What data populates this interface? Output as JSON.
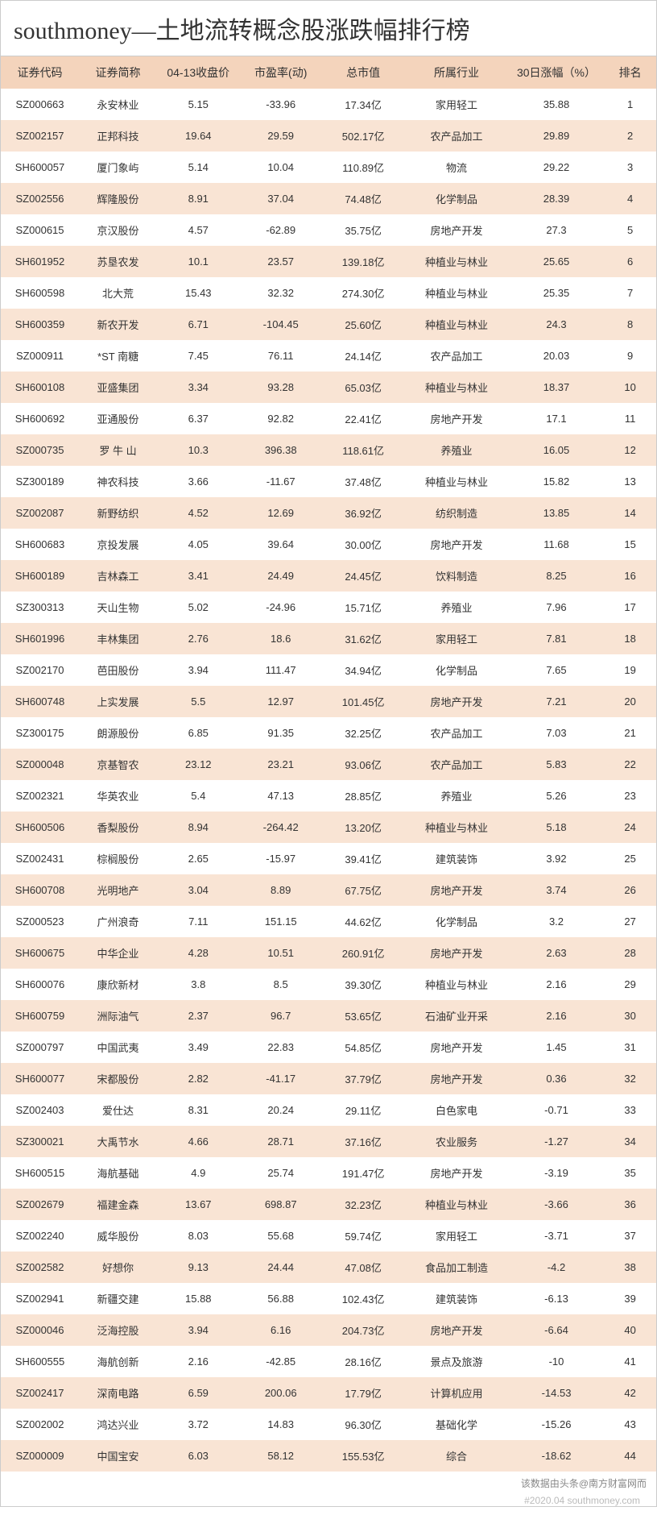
{
  "title": "southmoney—土地流转概念股涨跌幅排行榜",
  "headers": {
    "code": "证券代码",
    "name": "证券简称",
    "price": "04-13收盘价",
    "pe": "市盈率(动)",
    "mcap": "总市值",
    "industry": "所属行业",
    "chg": "30日涨幅（%）",
    "rank": "排名"
  },
  "rows": [
    {
      "code": "SZ000663",
      "name": "永安林业",
      "price": "5.15",
      "pe": "-33.96",
      "mcap": "17.34亿",
      "industry": "家用轻工",
      "chg": "35.88",
      "rank": "1"
    },
    {
      "code": "SZ002157",
      "name": "正邦科技",
      "price": "19.64",
      "pe": "29.59",
      "mcap": "502.17亿",
      "industry": "农产品加工",
      "chg": "29.89",
      "rank": "2"
    },
    {
      "code": "SH600057",
      "name": "厦门象屿",
      "price": "5.14",
      "pe": "10.04",
      "mcap": "110.89亿",
      "industry": "物流",
      "chg": "29.22",
      "rank": "3"
    },
    {
      "code": "SZ002556",
      "name": "辉隆股份",
      "price": "8.91",
      "pe": "37.04",
      "mcap": "74.48亿",
      "industry": "化学制品",
      "chg": "28.39",
      "rank": "4"
    },
    {
      "code": "SZ000615",
      "name": "京汉股份",
      "price": "4.57",
      "pe": "-62.89",
      "mcap": "35.75亿",
      "industry": "房地产开发",
      "chg": "27.3",
      "rank": "5"
    },
    {
      "code": "SH601952",
      "name": "苏垦农发",
      "price": "10.1",
      "pe": "23.57",
      "mcap": "139.18亿",
      "industry": "种植业与林业",
      "chg": "25.65",
      "rank": "6"
    },
    {
      "code": "SH600598",
      "name": "北大荒",
      "price": "15.43",
      "pe": "32.32",
      "mcap": "274.30亿",
      "industry": "种植业与林业",
      "chg": "25.35",
      "rank": "7"
    },
    {
      "code": "SH600359",
      "name": "新农开发",
      "price": "6.71",
      "pe": "-104.45",
      "mcap": "25.60亿",
      "industry": "种植业与林业",
      "chg": "24.3",
      "rank": "8"
    },
    {
      "code": "SZ000911",
      "name": "*ST 南糖",
      "price": "7.45",
      "pe": "76.11",
      "mcap": "24.14亿",
      "industry": "农产品加工",
      "chg": "20.03",
      "rank": "9"
    },
    {
      "code": "SH600108",
      "name": "亚盛集团",
      "price": "3.34",
      "pe": "93.28",
      "mcap": "65.03亿",
      "industry": "种植业与林业",
      "chg": "18.37",
      "rank": "10"
    },
    {
      "code": "SH600692",
      "name": "亚通股份",
      "price": "6.37",
      "pe": "92.82",
      "mcap": "22.41亿",
      "industry": "房地产开发",
      "chg": "17.1",
      "rank": "11"
    },
    {
      "code": "SZ000735",
      "name": "罗 牛 山",
      "price": "10.3",
      "pe": "396.38",
      "mcap": "118.61亿",
      "industry": "养殖业",
      "chg": "16.05",
      "rank": "12"
    },
    {
      "code": "SZ300189",
      "name": "神农科技",
      "price": "3.66",
      "pe": "-11.67",
      "mcap": "37.48亿",
      "industry": "种植业与林业",
      "chg": "15.82",
      "rank": "13"
    },
    {
      "code": "SZ002087",
      "name": "新野纺织",
      "price": "4.52",
      "pe": "12.69",
      "mcap": "36.92亿",
      "industry": "纺织制造",
      "chg": "13.85",
      "rank": "14"
    },
    {
      "code": "SH600683",
      "name": "京投发展",
      "price": "4.05",
      "pe": "39.64",
      "mcap": "30.00亿",
      "industry": "房地产开发",
      "chg": "11.68",
      "rank": "15"
    },
    {
      "code": "SH600189",
      "name": "吉林森工",
      "price": "3.41",
      "pe": "24.49",
      "mcap": "24.45亿",
      "industry": "饮料制造",
      "chg": "8.25",
      "rank": "16"
    },
    {
      "code": "SZ300313",
      "name": "天山生物",
      "price": "5.02",
      "pe": "-24.96",
      "mcap": "15.71亿",
      "industry": "养殖业",
      "chg": "7.96",
      "rank": "17"
    },
    {
      "code": "SH601996",
      "name": "丰林集团",
      "price": "2.76",
      "pe": "18.6",
      "mcap": "31.62亿",
      "industry": "家用轻工",
      "chg": "7.81",
      "rank": "18"
    },
    {
      "code": "SZ002170",
      "name": "芭田股份",
      "price": "3.94",
      "pe": "111.47",
      "mcap": "34.94亿",
      "industry": "化学制品",
      "chg": "7.65",
      "rank": "19"
    },
    {
      "code": "SH600748",
      "name": "上实发展",
      "price": "5.5",
      "pe": "12.97",
      "mcap": "101.45亿",
      "industry": "房地产开发",
      "chg": "7.21",
      "rank": "20"
    },
    {
      "code": "SZ300175",
      "name": "朗源股份",
      "price": "6.85",
      "pe": "91.35",
      "mcap": "32.25亿",
      "industry": "农产品加工",
      "chg": "7.03",
      "rank": "21"
    },
    {
      "code": "SZ000048",
      "name": "京基智农",
      "price": "23.12",
      "pe": "23.21",
      "mcap": "93.06亿",
      "industry": "农产品加工",
      "chg": "5.83",
      "rank": "22"
    },
    {
      "code": "SZ002321",
      "name": "华英农业",
      "price": "5.4",
      "pe": "47.13",
      "mcap": "28.85亿",
      "industry": "养殖业",
      "chg": "5.26",
      "rank": "23"
    },
    {
      "code": "SH600506",
      "name": "香梨股份",
      "price": "8.94",
      "pe": "-264.42",
      "mcap": "13.20亿",
      "industry": "种植业与林业",
      "chg": "5.18",
      "rank": "24"
    },
    {
      "code": "SZ002431",
      "name": "棕榈股份",
      "price": "2.65",
      "pe": "-15.97",
      "mcap": "39.41亿",
      "industry": "建筑装饰",
      "chg": "3.92",
      "rank": "25"
    },
    {
      "code": "SH600708",
      "name": "光明地产",
      "price": "3.04",
      "pe": "8.89",
      "mcap": "67.75亿",
      "industry": "房地产开发",
      "chg": "3.74",
      "rank": "26"
    },
    {
      "code": "SZ000523",
      "name": "广州浪奇",
      "price": "7.11",
      "pe": "151.15",
      "mcap": "44.62亿",
      "industry": "化学制品",
      "chg": "3.2",
      "rank": "27"
    },
    {
      "code": "SH600675",
      "name": "中华企业",
      "price": "4.28",
      "pe": "10.51",
      "mcap": "260.91亿",
      "industry": "房地产开发",
      "chg": "2.63",
      "rank": "28"
    },
    {
      "code": "SH600076",
      "name": "康欣新材",
      "price": "3.8",
      "pe": "8.5",
      "mcap": "39.30亿",
      "industry": "种植业与林业",
      "chg": "2.16",
      "rank": "29"
    },
    {
      "code": "SH600759",
      "name": "洲际油气",
      "price": "2.37",
      "pe": "96.7",
      "mcap": "53.65亿",
      "industry": "石油矿业开采",
      "chg": "2.16",
      "rank": "30"
    },
    {
      "code": "SZ000797",
      "name": "中国武夷",
      "price": "3.49",
      "pe": "22.83",
      "mcap": "54.85亿",
      "industry": "房地产开发",
      "chg": "1.45",
      "rank": "31"
    },
    {
      "code": "SH600077",
      "name": "宋都股份",
      "price": "2.82",
      "pe": "-41.17",
      "mcap": "37.79亿",
      "industry": "房地产开发",
      "chg": "0.36",
      "rank": "32"
    },
    {
      "code": "SZ002403",
      "name": "爱仕达",
      "price": "8.31",
      "pe": "20.24",
      "mcap": "29.11亿",
      "industry": "白色家电",
      "chg": "-0.71",
      "rank": "33"
    },
    {
      "code": "SZ300021",
      "name": "大禹节水",
      "price": "4.66",
      "pe": "28.71",
      "mcap": "37.16亿",
      "industry": "农业服务",
      "chg": "-1.27",
      "rank": "34"
    },
    {
      "code": "SH600515",
      "name": "海航基础",
      "price": "4.9",
      "pe": "25.74",
      "mcap": "191.47亿",
      "industry": "房地产开发",
      "chg": "-3.19",
      "rank": "35"
    },
    {
      "code": "SZ002679",
      "name": "福建金森",
      "price": "13.67",
      "pe": "698.87",
      "mcap": "32.23亿",
      "industry": "种植业与林业",
      "chg": "-3.66",
      "rank": "36"
    },
    {
      "code": "SZ002240",
      "name": "威华股份",
      "price": "8.03",
      "pe": "55.68",
      "mcap": "59.74亿",
      "industry": "家用轻工",
      "chg": "-3.71",
      "rank": "37"
    },
    {
      "code": "SZ002582",
      "name": "好想你",
      "price": "9.13",
      "pe": "24.44",
      "mcap": "47.08亿",
      "industry": "食品加工制造",
      "chg": "-4.2",
      "rank": "38"
    },
    {
      "code": "SZ002941",
      "name": "新疆交建",
      "price": "15.88",
      "pe": "56.88",
      "mcap": "102.43亿",
      "industry": "建筑装饰",
      "chg": "-6.13",
      "rank": "39"
    },
    {
      "code": "SZ000046",
      "name": "泛海控股",
      "price": "3.94",
      "pe": "6.16",
      "mcap": "204.73亿",
      "industry": "房地产开发",
      "chg": "-6.64",
      "rank": "40"
    },
    {
      "code": "SH600555",
      "name": "海航创新",
      "price": "2.16",
      "pe": "-42.85",
      "mcap": "28.16亿",
      "industry": "景点及旅游",
      "chg": "-10",
      "rank": "41"
    },
    {
      "code": "SZ002417",
      "name": "深南电路",
      "price": "6.59",
      "pe": "200.06",
      "mcap": "17.79亿",
      "industry": "计算机应用",
      "chg": "-14.53",
      "rank": "42"
    },
    {
      "code": "SZ002002",
      "name": "鸿达兴业",
      "price": "3.72",
      "pe": "14.83",
      "mcap": "96.30亿",
      "industry": "基础化学",
      "chg": "-15.26",
      "rank": "43"
    },
    {
      "code": "SZ000009",
      "name": "中国宝安",
      "price": "6.03",
      "pe": "58.12",
      "mcap": "155.53亿",
      "industry": "综合",
      "chg": "-18.62",
      "rank": "44"
    }
  ],
  "footer": "该数据由头条@南方财富网而",
  "watermark": "#2020.04 southmoney.com"
}
